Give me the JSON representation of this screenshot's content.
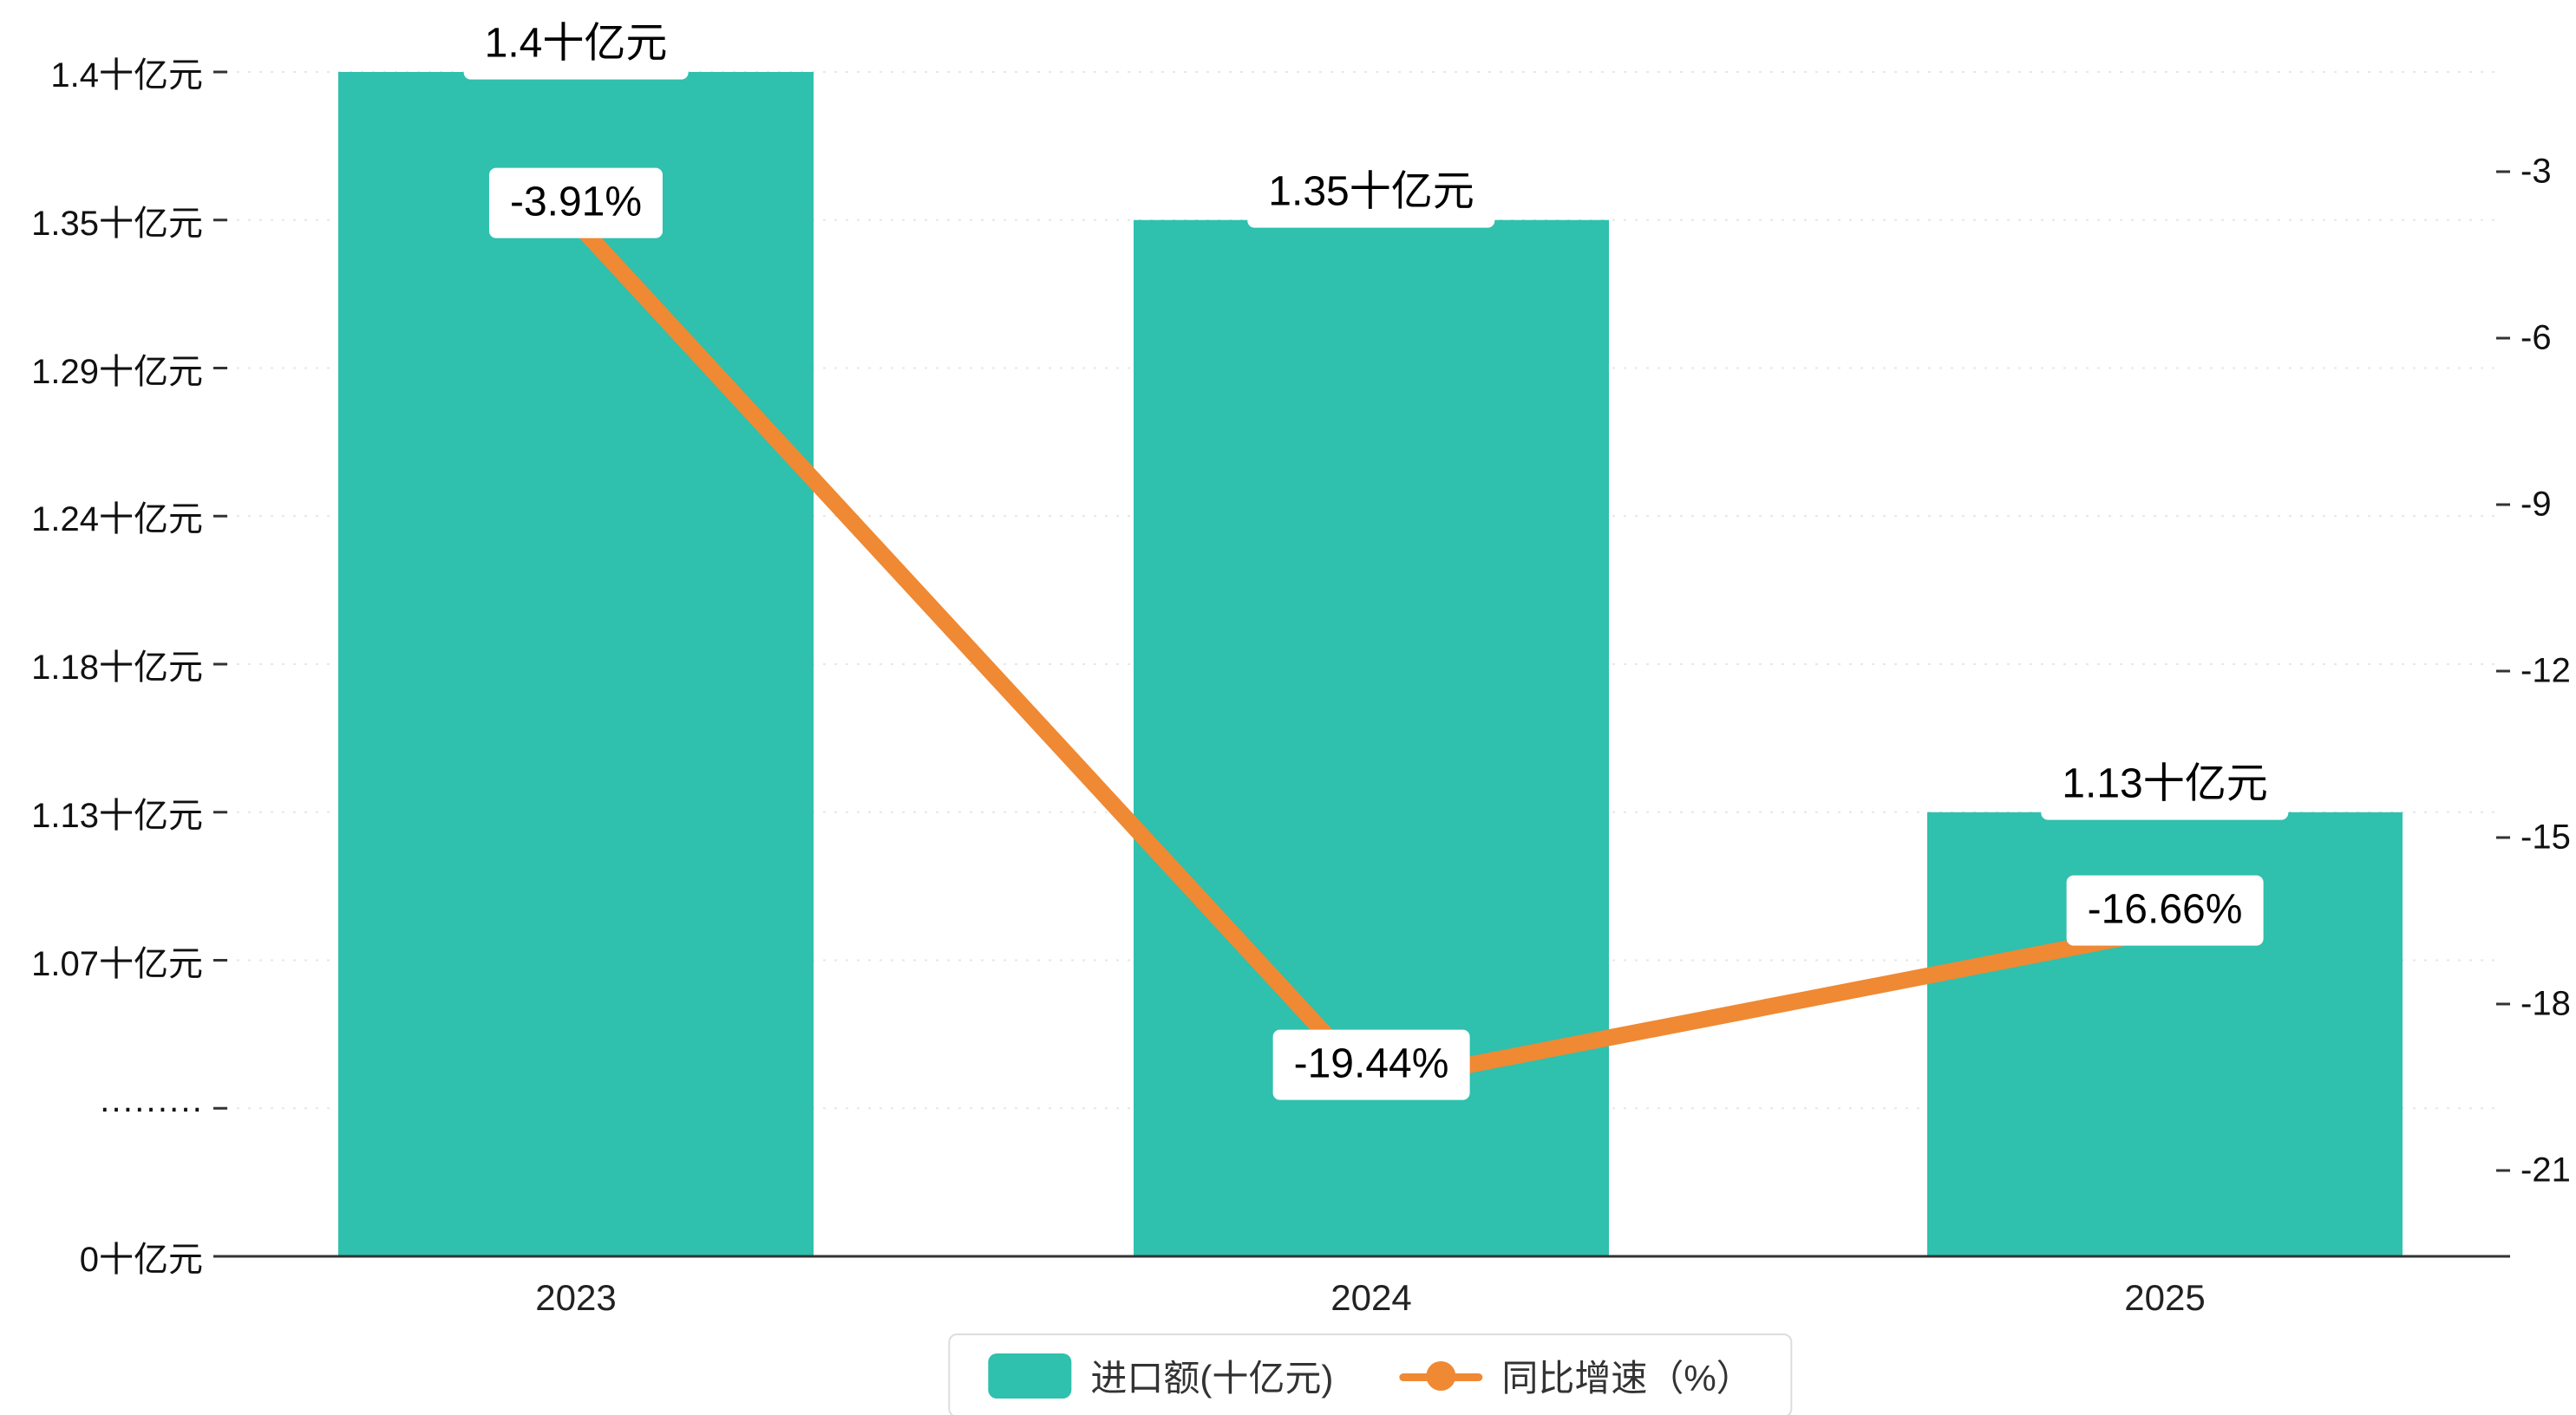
{
  "chart_data": {
    "type": "combo-bar-line",
    "categories": [
      "2023",
      "2024",
      "2025"
    ],
    "series": [
      {
        "name": "进口额(十亿元)",
        "type": "bar",
        "color": "#2fc0ae",
        "values": [
          1.4,
          1.35,
          1.13
        ],
        "value_labels": [
          "1.4十亿元",
          "1.35十亿元",
          "1.13十亿元"
        ],
        "axis": "left"
      },
      {
        "name": "同比增速（%）",
        "type": "line",
        "color": "#ef8933",
        "values": [
          -3.91,
          -19.44,
          -16.66
        ],
        "value_labels": [
          "-3.91%",
          "-19.44%",
          "-16.66%"
        ],
        "axis": "right"
      }
    ],
    "left_axis": {
      "tick_labels": [
        "1.4十亿元",
        "1.35十亿元",
        "1.29十亿元",
        "1.24十亿元",
        "1.18十亿元",
        "1.13十亿元",
        "1.07十亿元",
        "·········",
        "0十亿元"
      ],
      "tick_values": [
        1.4,
        1.35,
        1.29,
        1.24,
        1.18,
        1.13,
        1.07,
        null,
        0
      ],
      "axis_break": true
    },
    "right_axis": {
      "tick_labels": [
        "-3",
        "-6",
        "-9",
        "-12",
        "-15",
        "-18",
        "-21"
      ],
      "max": -3,
      "min": -21
    },
    "legend": {
      "items": [
        {
          "label": "进口额(十亿元)",
          "marker": "bar"
        },
        {
          "label": "同比增速（%）",
          "marker": "line"
        }
      ],
      "position": "bottom-center"
    },
    "grid": "dashed-horizontal",
    "background": "#ffffff"
  }
}
